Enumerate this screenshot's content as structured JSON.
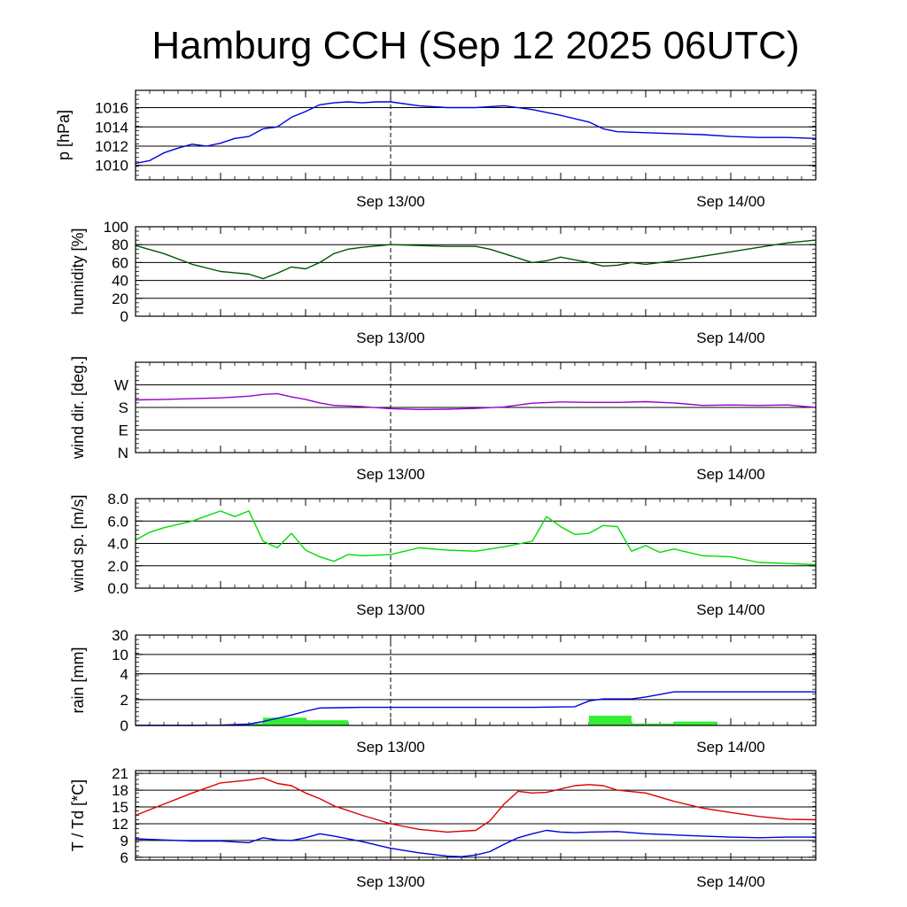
{
  "title": "Hamburg CCH (Sep 12 2025 06UTC)",
  "x_tick_labels": [
    "Sep 13/00",
    "Sep 14/00"
  ],
  "colors": {
    "pressure": "#0000dd",
    "humidity": "#005500",
    "wind_dir": "#9900cc",
    "wind_speed": "#00dd00",
    "rain_bar": "#33ee33",
    "rain_cum": "#0000dd",
    "temperature": "#dd0000",
    "dewpoint": "#0000dd"
  },
  "chart_data": [
    {
      "type": "line",
      "key": "pressure",
      "ylabel": "p [hPa]",
      "yticks": [
        "1010",
        "1012",
        "1014",
        "1016"
      ],
      "ytick_values": [
        1010,
        1012,
        1014,
        1016
      ],
      "ylim": [
        1008.5,
        1017.8
      ],
      "x_hours": [
        6,
        7,
        8,
        9,
        10,
        11,
        12,
        13,
        14,
        15,
        16,
        17,
        18,
        19,
        20,
        21,
        22,
        23,
        24,
        26,
        28,
        30,
        32,
        34,
        36,
        38,
        39,
        40,
        42,
        44,
        46,
        48,
        50,
        52,
        54
      ],
      "series": [
        {
          "values": [
            1010.2,
            1010.5,
            1011.3,
            1011.8,
            1012.2,
            1012.0,
            1012.3,
            1012.8,
            1013.0,
            1013.8,
            1014.0,
            1015.0,
            1015.6,
            1016.3,
            1016.5,
            1016.6,
            1016.5,
            1016.6,
            1016.6,
            1016.2,
            1016.0,
            1016.0,
            1016.2,
            1015.8,
            1015.2,
            1014.5,
            1013.8,
            1013.5,
            1013.4,
            1013.3,
            1013.2,
            1013.0,
            1012.9,
            1012.9,
            1012.8
          ]
        }
      ]
    },
    {
      "type": "line",
      "key": "humidity",
      "ylabel": "humidity [%]",
      "yticks": [
        "0",
        "20",
        "40",
        "60",
        "80",
        "100"
      ],
      "ytick_values": [
        0,
        20,
        40,
        60,
        80,
        100
      ],
      "ylim": [
        0,
        100
      ],
      "x_hours": [
        6,
        8,
        10,
        12,
        14,
        15,
        16,
        17,
        18,
        19,
        20,
        21,
        22,
        24,
        26,
        28,
        30,
        31,
        32,
        34,
        35,
        36,
        38,
        39,
        40,
        41,
        42,
        44,
        46,
        48,
        50,
        52,
        54
      ],
      "series": [
        {
          "values": [
            79,
            70,
            58,
            50,
            47,
            42,
            48,
            55,
            53,
            60,
            70,
            75,
            77,
            80,
            79,
            78,
            78,
            75,
            70,
            60,
            62,
            66,
            60,
            56,
            57,
            60,
            58,
            62,
            67,
            72,
            77,
            82,
            85
          ]
        }
      ]
    },
    {
      "type": "line",
      "key": "wind_dir",
      "ylabel": "wind dir. [deg.]",
      "yticks": [
        "N",
        "E",
        "S",
        "W"
      ],
      "ytick_values": [
        0,
        90,
        180,
        270
      ],
      "ylim": [
        0,
        360
      ],
      "x_hours": [
        6,
        8,
        10,
        12,
        14,
        15,
        16,
        17,
        18,
        19,
        20,
        21,
        22,
        24,
        26,
        28,
        30,
        32,
        34,
        36,
        38,
        40,
        42,
        44,
        46,
        48,
        50,
        52,
        54
      ],
      "series": [
        {
          "values": [
            210,
            212,
            215,
            218,
            225,
            232,
            235,
            222,
            212,
            198,
            188,
            186,
            183,
            175,
            172,
            173,
            176,
            182,
            197,
            202,
            200,
            200,
            203,
            198,
            188,
            190,
            188,
            190,
            180
          ]
        }
      ]
    },
    {
      "type": "line",
      "key": "wind_speed",
      "ylabel": "wind sp. [m/s]",
      "yticks": [
        "0.0",
        "2.0",
        "4.0",
        "6.0",
        "8.0"
      ],
      "ytick_values": [
        0,
        2,
        4,
        6,
        8
      ],
      "ylim": [
        0,
        8
      ],
      "x_hours": [
        6,
        7,
        8,
        10,
        12,
        13,
        14,
        15,
        16,
        17,
        18,
        19,
        20,
        21,
        22,
        24,
        26,
        28,
        30,
        32,
        34,
        35,
        36,
        37,
        38,
        39,
        40,
        41,
        42,
        43,
        44,
        46,
        48,
        50,
        52,
        54
      ],
      "series": [
        {
          "values": [
            4.3,
            5.0,
            5.4,
            6.0,
            6.9,
            6.4,
            6.9,
            4.2,
            3.6,
            4.9,
            3.4,
            2.8,
            2.4,
            3.0,
            2.9,
            3.0,
            3.6,
            3.4,
            3.3,
            3.7,
            4.2,
            6.4,
            5.5,
            4.8,
            4.9,
            5.6,
            5.5,
            3.3,
            3.8,
            3.2,
            3.5,
            2.9,
            2.8,
            2.3,
            2.2,
            2.1
          ]
        }
      ]
    },
    {
      "type": "bar",
      "key": "rain",
      "ylabel": "rain [mm]",
      "yticks": [
        "0",
        "2",
        "4",
        "10",
        "30"
      ],
      "ytick_values": [
        0,
        2,
        4,
        10,
        30
      ],
      "y_scale": "nonlinear",
      "ylim": [
        0,
        30
      ],
      "bars": {
        "intervals_hours": [
          [
            14,
            15
          ],
          [
            15,
            18
          ],
          [
            18,
            21
          ],
          [
            38,
            41
          ],
          [
            41,
            44
          ],
          [
            44,
            47
          ]
        ],
        "values": [
          0.15,
          0.6,
          0.4,
          0.75,
          0.15,
          0.3
        ]
      },
      "cumulative": {
        "x_hours": [
          6,
          10,
          12,
          14,
          15,
          16,
          17,
          18,
          19,
          22,
          26,
          30,
          34,
          37,
          38,
          39,
          41,
          42,
          44,
          48,
          54
        ],
        "values": [
          0,
          0,
          0.02,
          0.1,
          0.3,
          0.55,
          0.8,
          1.1,
          1.35,
          1.4,
          1.4,
          1.4,
          1.4,
          1.45,
          1.9,
          2.05,
          2.05,
          2.2,
          2.6,
          2.6,
          2.6
        ]
      }
    },
    {
      "type": "line",
      "key": "temperature",
      "ylabel": "T / Td [*C]",
      "yticks": [
        "6",
        "9",
        "12",
        "15",
        "18",
        "21"
      ],
      "ytick_values": [
        6,
        9,
        12,
        15,
        18,
        21
      ],
      "ylim": [
        5.5,
        21.5
      ],
      "series": [
        {
          "key": "temperature",
          "x_hours": [
            6,
            8,
            10,
            12,
            14,
            15,
            16,
            17,
            18,
            19,
            20,
            22,
            24,
            26,
            28,
            30,
            31,
            32,
            33,
            34,
            35,
            36,
            37,
            38,
            39,
            40,
            42,
            44,
            46,
            48,
            50,
            52,
            54
          ],
          "values": [
            13.5,
            15.5,
            17.5,
            19.3,
            19.8,
            20.2,
            19.2,
            18.8,
            17.5,
            16.5,
            15.2,
            13.5,
            12.0,
            11.0,
            10.5,
            10.8,
            12.5,
            15.5,
            17.8,
            17.5,
            17.6,
            18.2,
            18.8,
            19.0,
            18.8,
            18.0,
            17.5,
            16.0,
            14.8,
            14.0,
            13.3,
            12.8,
            12.7
          ]
        },
        {
          "key": "dewpoint",
          "x_hours": [
            6,
            8,
            10,
            12,
            14,
            15,
            16,
            17,
            18,
            19,
            20,
            22,
            24,
            26,
            28,
            29,
            30,
            31,
            32,
            33,
            34,
            35,
            36,
            37,
            38,
            40,
            42,
            44,
            46,
            48,
            50,
            52,
            54
          ],
          "values": [
            9.3,
            9.1,
            8.9,
            8.9,
            8.6,
            9.5,
            9.1,
            9.0,
            9.5,
            10.2,
            9.8,
            8.8,
            7.6,
            6.8,
            6.2,
            6.1,
            6.4,
            7.0,
            8.3,
            9.5,
            10.2,
            10.8,
            10.5,
            10.4,
            10.5,
            10.6,
            10.2,
            10.0,
            9.8,
            9.6,
            9.5,
            9.6,
            9.6
          ]
        }
      ]
    }
  ]
}
